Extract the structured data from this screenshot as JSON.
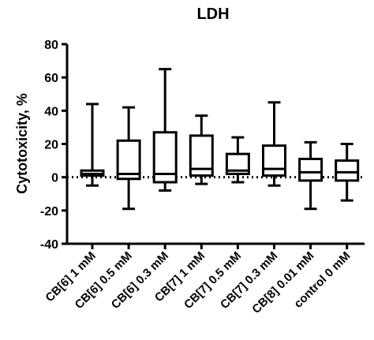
{
  "chart_data": {
    "type": "boxplot",
    "title": "LDH",
    "ylabel": "Cytotoxicity, %",
    "xlabel": "",
    "ylim": [
      -40,
      80
    ],
    "yticks": [
      -40,
      -20,
      0,
      20,
      40,
      60,
      80
    ],
    "reference_line": {
      "y": 0,
      "style": "dotted"
    },
    "categories": [
      "CB[6] 1 mM",
      "CB[6] 0.5 mM",
      "CB[6] 0.3 mM",
      "CB[7] 1 mM",
      "CB[7] 0.5 mM",
      "CB[7] 0.3 mM",
      "CB[8] 0.01 mM",
      "control 0 mM"
    ],
    "boxes": [
      {
        "min": -5,
        "q1": 1,
        "median": 2,
        "q3": 4,
        "max": 44
      },
      {
        "min": -19,
        "q1": -1,
        "median": 2,
        "q3": 22,
        "max": 42
      },
      {
        "min": -8,
        "q1": -3,
        "median": 2,
        "q3": 27,
        "max": 65
      },
      {
        "min": -4,
        "q1": 1,
        "median": 5,
        "q3": 25,
        "max": 37
      },
      {
        "min": -3,
        "q1": 2,
        "median": 4,
        "q3": 14,
        "max": 24
      },
      {
        "min": -5,
        "q1": 1,
        "median": 5,
        "q3": 19,
        "max": 45
      },
      {
        "min": -19,
        "q1": -2,
        "median": 3,
        "q3": 11,
        "max": 21
      },
      {
        "min": -14,
        "q1": -2,
        "median": 3,
        "q3": 10,
        "max": 20
      }
    ],
    "colors": {
      "stroke": "#000000",
      "fill": "#ffffff"
    }
  }
}
